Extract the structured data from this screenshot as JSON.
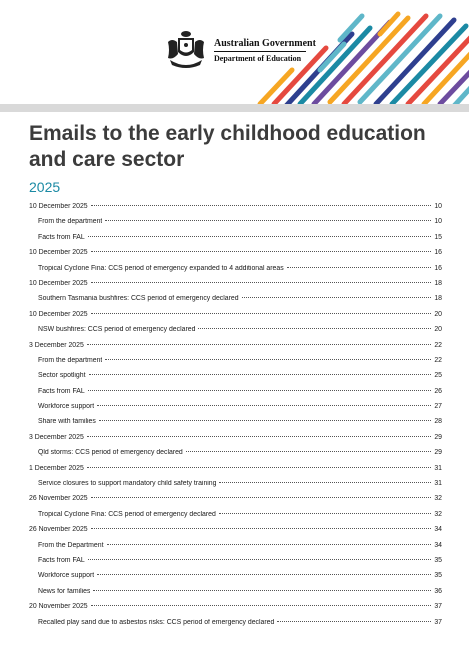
{
  "header": {
    "gov_name": "Australian Government",
    "department": "Department of Education",
    "crest_icon": "coat-of-arms-icon",
    "stripe_colors": [
      "#1b8aa4",
      "#e5493f",
      "#f6a623",
      "#6d4c9f",
      "#2e3f8f",
      "#5fb7c9"
    ]
  },
  "document": {
    "title": "Emails to the early childhood education and care sector",
    "year": "2025"
  },
  "toc": [
    {
      "title": "10 December 2025",
      "page": "10",
      "level": 1
    },
    {
      "title": "From the department",
      "page": "10",
      "level": 2
    },
    {
      "title": "Facts from FAL",
      "page": "15",
      "level": 2
    },
    {
      "title": "10 December 2025",
      "page": "16",
      "level": 1
    },
    {
      "title": "Tropical Cyclone Fina: CCS period of emergency expanded to 4 additional areas",
      "page": "16",
      "level": 2
    },
    {
      "title": "10 December 2025",
      "page": "18",
      "level": 1
    },
    {
      "title": "Southern Tasmania bushfires: CCS period of emergency declared",
      "page": "18",
      "level": 2
    },
    {
      "title": "10 December 2025",
      "page": "20",
      "level": 1
    },
    {
      "title": "NSW bushfires: CCS period of emergency declared",
      "page": "20",
      "level": 2
    },
    {
      "title": "3 December 2025",
      "page": "22",
      "level": 1
    },
    {
      "title": "From the department",
      "page": "22",
      "level": 2
    },
    {
      "title": "Sector spotlight",
      "page": "25",
      "level": 2
    },
    {
      "title": "Facts from FAL",
      "page": "26",
      "level": 2
    },
    {
      "title": "Workforce support",
      "page": "27",
      "level": 2
    },
    {
      "title": "Share with families",
      "page": "28",
      "level": 2
    },
    {
      "title": "3 December 2025",
      "page": "29",
      "level": 1
    },
    {
      "title": "Qld storms: CCS period of emergency declared",
      "page": "29",
      "level": 2
    },
    {
      "title": "1 December 2025",
      "page": "31",
      "level": 1
    },
    {
      "title": "Service closures to support mandatory child safety training",
      "page": "31",
      "level": 2
    },
    {
      "title": "26 November 2025",
      "page": "32",
      "level": 1
    },
    {
      "title": "Tropical Cyclone Fina: CCS period of emergency declared",
      "page": "32",
      "level": 2
    },
    {
      "title": "26 November 2025",
      "page": "34",
      "level": 1
    },
    {
      "title": "From the Department",
      "page": "34",
      "level": 2
    },
    {
      "title": "Facts from FAL",
      "page": "35",
      "level": 2
    },
    {
      "title": "Workforce support",
      "page": "35",
      "level": 2
    },
    {
      "title": "News for families",
      "page": "36",
      "level": 2
    },
    {
      "title": "20 November 2025",
      "page": "37",
      "level": 1
    },
    {
      "title": "Recalled play sand due to asbestos risks: CCS period of emergency declared",
      "page": "37",
      "level": 2
    }
  ]
}
